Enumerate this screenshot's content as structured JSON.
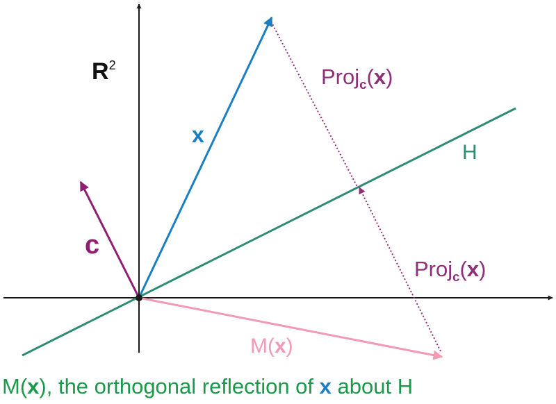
{
  "colors": {
    "axes": "#1a1a1a",
    "x_vector": "#1a7fc2",
    "c_vector": "#8e1f73",
    "line_h": "#2e8c74",
    "proj": "#8e2f78",
    "mx": "#f29ab4",
    "caption": "#199a4a",
    "bold_text": "#111111"
  },
  "labels": {
    "space_symbol": "R",
    "space_power": "2",
    "x_vector": "x",
    "c_vector": "c",
    "line_h": "H",
    "proj_top": {
      "prefix": "Proj",
      "sub": "c",
      "open": "(",
      "arg": "x",
      "close": ")"
    },
    "proj_bottom": {
      "prefix": "Proj",
      "sub": "c",
      "open": "(",
      "arg": "x",
      "close": ")"
    },
    "mx": {
      "prefix": "M(",
      "arg": "x",
      "close": ")"
    }
  },
  "caption": {
    "part1": "M(",
    "x1": "x",
    "part2": "), the orthogonal reflection of ",
    "x2": "x",
    "part3": " about H"
  }
}
